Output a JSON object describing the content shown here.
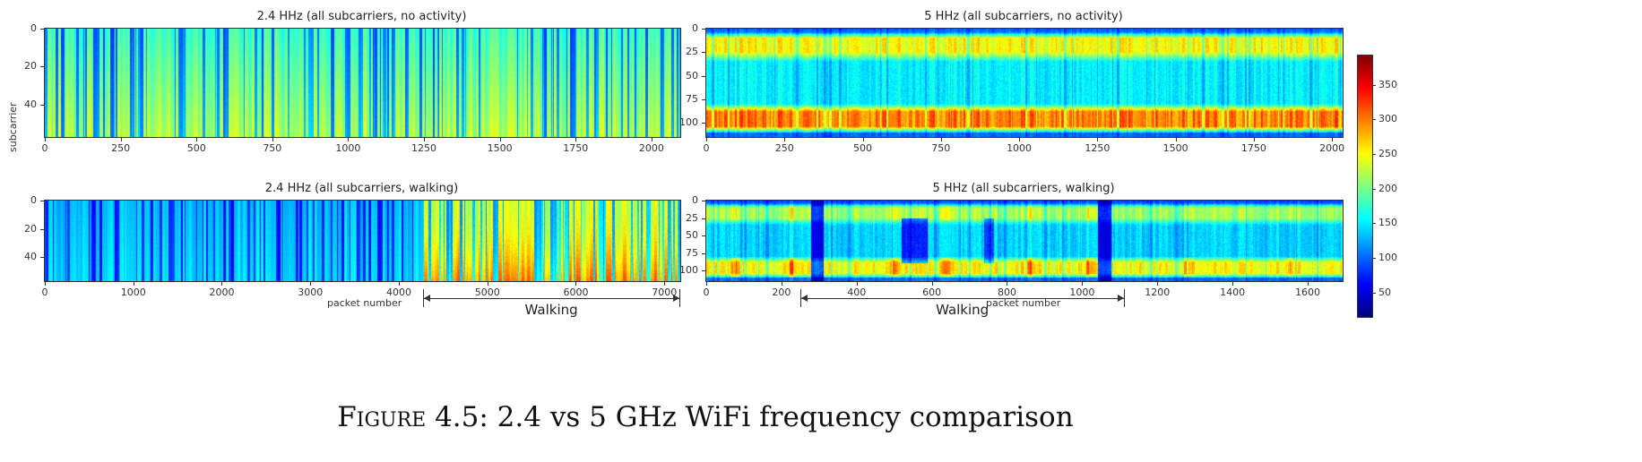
{
  "figure": {
    "ylabel": "subcarrier",
    "caption_label": "Figure 4.5:",
    "caption_text": " 2.4 vs 5 GHz WiFi frequency comparison"
  },
  "chart_data": [
    {
      "type": "heatmap",
      "title": "2.4 HHz (all subcarriers, no activity)",
      "xlabel": "",
      "xticks": [
        0,
        250,
        500,
        750,
        1000,
        1250,
        1500,
        1750,
        2000
      ],
      "yticks": [
        0,
        20,
        40
      ],
      "xlim": [
        0,
        2095
      ],
      "ylim": [
        0,
        57
      ],
      "colormap": "jet"
    },
    {
      "type": "heatmap",
      "title": "5 HHz (all subcarriers, no activity)",
      "xlabel": "",
      "xticks": [
        0,
        250,
        500,
        750,
        1000,
        1250,
        1500,
        1750,
        2000
      ],
      "yticks": [
        0,
        25,
        50,
        75,
        100
      ],
      "xlim": [
        0,
        2034
      ],
      "ylim": [
        0,
        115
      ],
      "colormap": "jet"
    },
    {
      "type": "heatmap",
      "title": "2.4 HHz (all subcarriers, walking)",
      "xlabel": "packet number",
      "xticks": [
        0,
        1000,
        2000,
        3000,
        4000,
        5000,
        6000,
        7000
      ],
      "yticks": [
        0,
        20,
        40
      ],
      "xlim": [
        0,
        7180
      ],
      "ylim": [
        0,
        57
      ],
      "colormap": "jet",
      "annotation": {
        "label": "Walking",
        "range": [
          4286,
          7180
        ]
      }
    },
    {
      "type": "heatmap",
      "title": "5 HHz (all subcarriers, walking)",
      "xlabel": "packet number",
      "xticks": [
        0,
        200,
        400,
        600,
        800,
        1000,
        1200,
        1400,
        1600
      ],
      "yticks": [
        0,
        25,
        50,
        75,
        100
      ],
      "xlim": [
        0,
        1693
      ],
      "ylim": [
        0,
        115
      ],
      "colormap": "jet",
      "annotation": {
        "label": "Walking",
        "range": [
          253,
          1114
        ]
      }
    }
  ],
  "colorbar": {
    "range": [
      15,
      392
    ],
    "ticks": [
      50,
      100,
      150,
      200,
      250,
      300,
      350
    ],
    "colormap": "jet"
  }
}
